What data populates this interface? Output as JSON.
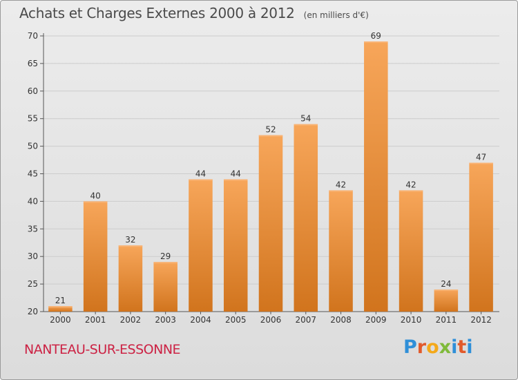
{
  "header": {
    "title": "Achats et Charges Externes 2000 à 2012",
    "unit": "(en milliers d'€)"
  },
  "footer": {
    "commune": "NANTEAU-SUR-ESSONNE",
    "logo_text": "Proxiti"
  },
  "colors": {
    "bar_top": "#f7a65a",
    "bar_bottom": "#d1741d",
    "commune_text": "#cc2244",
    "grid": "#cccccc"
  },
  "chart_data": {
    "type": "bar",
    "title": "Achats et Charges Externes 2000 à 2012",
    "subtitle": "(en milliers d'€)",
    "xlabel": "",
    "ylabel": "",
    "categories": [
      "2000",
      "2001",
      "2002",
      "2003",
      "2004",
      "2005",
      "2006",
      "2007",
      "2008",
      "2009",
      "2010",
      "2011",
      "2012"
    ],
    "values": [
      21,
      40,
      32,
      29,
      44,
      44,
      52,
      54,
      42,
      69,
      42,
      24,
      47
    ],
    "data_labels": [
      "21",
      "40",
      "32",
      "29",
      "44",
      "44",
      "52",
      "54",
      "42",
      "69",
      "42",
      "24",
      "47"
    ],
    "ylim": [
      20,
      70
    ],
    "yticks": [
      20,
      25,
      30,
      35,
      40,
      45,
      50,
      55,
      60,
      65,
      70
    ],
    "grid": true,
    "legend": "none"
  }
}
